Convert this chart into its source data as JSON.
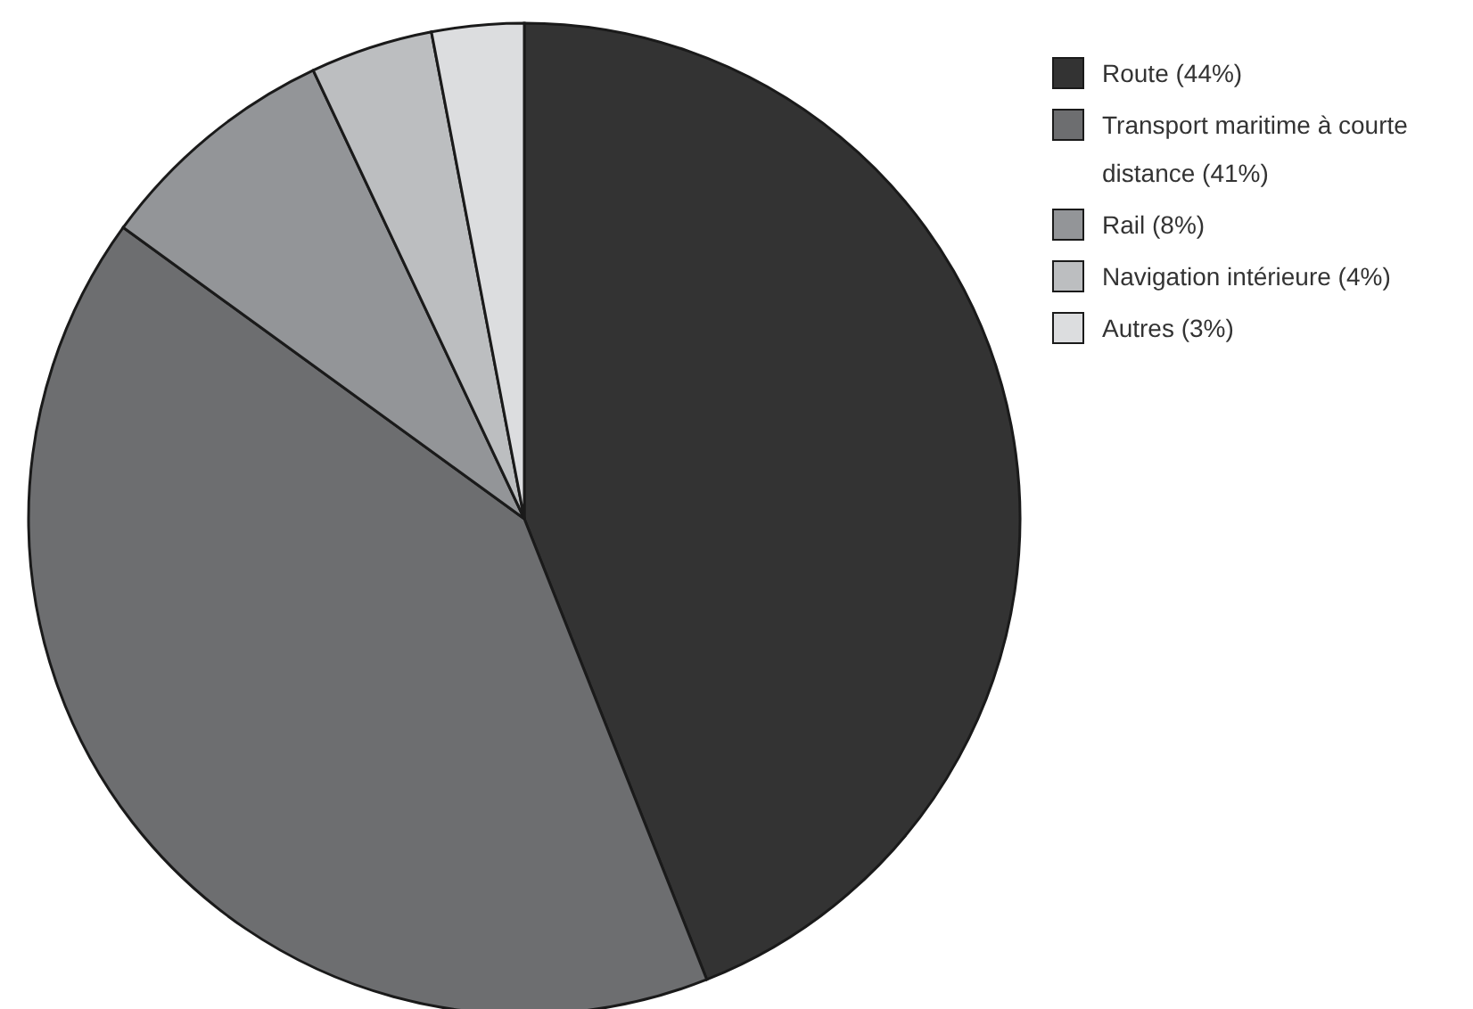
{
  "chart_data": {
    "type": "pie",
    "categories": [
      "Route (44%)",
      "Transport maritime à courte distance (41%)",
      "Rail (8%)",
      "Navigation intérieure (4%)",
      "Autres (3%)"
    ],
    "values": [
      44,
      41,
      8,
      4,
      3
    ],
    "colors": [
      "#333333",
      "#6d6e70",
      "#939598",
      "#bcbec0",
      "#dcdddf"
    ],
    "legend": "right"
  }
}
